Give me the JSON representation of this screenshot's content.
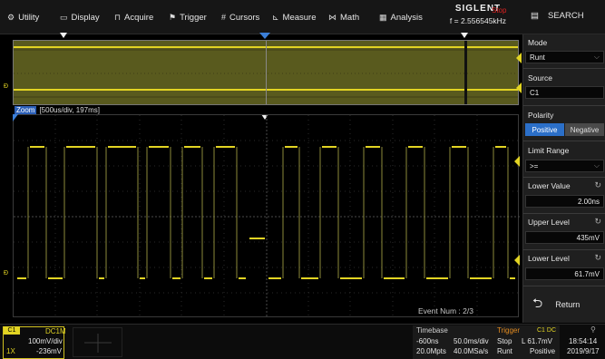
{
  "menu": {
    "utility": "Utility",
    "display": "Display",
    "acquire": "Acquire",
    "trigger": "Trigger",
    "cursors": "Cursors",
    "measure": "Measure",
    "math": "Math",
    "analysis": "Analysis",
    "search": "SEARCH"
  },
  "brand": {
    "name": "SIGLENT",
    "run_state": "Stop",
    "frequency": "f = 2.556545kHz"
  },
  "zoom": {
    "tag": "Zoom",
    "info": "[500us/div, 197ms]"
  },
  "event": {
    "text": "Event Num : 2/3"
  },
  "side_panel": {
    "mode_label": "Mode",
    "mode_value": "Runt",
    "source_label": "Source",
    "source_value": "C1",
    "polarity_label": "Polarity",
    "polarity_positive": "Positive",
    "polarity_negative": "Negative",
    "limit_range_label": "Limit Range",
    "limit_range_value": ">=",
    "lower_value_label": "Lower Value",
    "lower_value": "2.00ns",
    "upper_level_label": "Upper Level",
    "upper_level": "435mV",
    "lower_level_label": "Lower Level",
    "lower_level": "61.7mV",
    "return_label": "Return"
  },
  "channel": {
    "tag": "C1",
    "coupling": "DC1M",
    "scale": "100mV/div",
    "probe": "1X",
    "offset": "-236mV"
  },
  "timebase": {
    "label": "Timebase",
    "delay": "-600ns",
    "scale": "50.0ms/div",
    "memory": "20.0Mpts",
    "sample_rate": "40.0MSa/s"
  },
  "trigger": {
    "label": "Trigger",
    "source_coupling": "C1 DC",
    "state": "Stop",
    "level": "L 61.7mV",
    "type": "Runt",
    "polarity": "Positive"
  },
  "clock": {
    "time": "18:54:14",
    "date": "2019/9/17"
  },
  "colors": {
    "channel1": "#e2d423",
    "accent_blue": "#2b6fc8",
    "stop_red": "#e02020",
    "trigger_orange": "#e08a20",
    "overview_bg": "#595a1e"
  }
}
